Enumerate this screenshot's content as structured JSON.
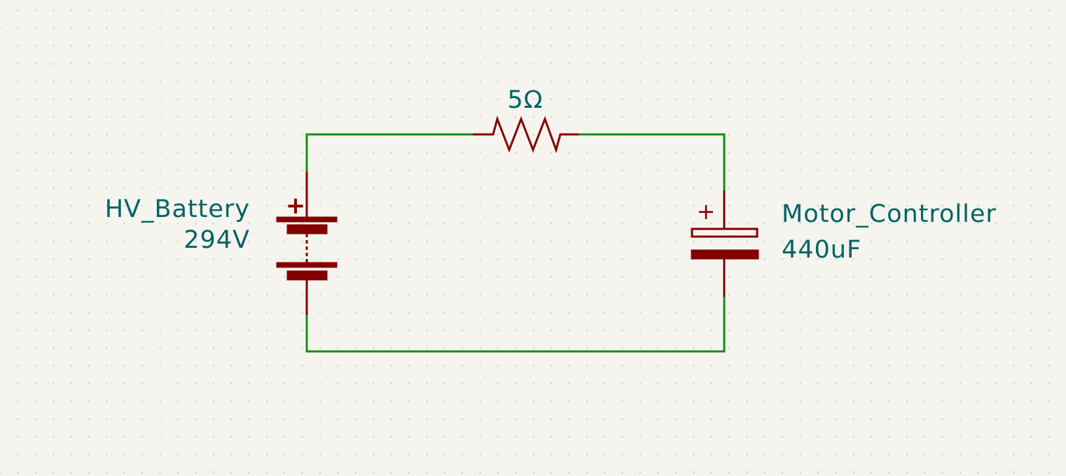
{
  "colors": {
    "background": "#f5f4ef",
    "grid_dot": "#c4c4bc",
    "wire": "#149014",
    "component": "#840000",
    "text": "#006464"
  },
  "battery": {
    "reference": "HV_Battery",
    "value": "294V",
    "polarity_mark": "+"
  },
  "resistor": {
    "value": "5Ω"
  },
  "capacitor": {
    "reference": "Motor_Controller",
    "value": "440uF",
    "polarity_mark": "+"
  }
}
